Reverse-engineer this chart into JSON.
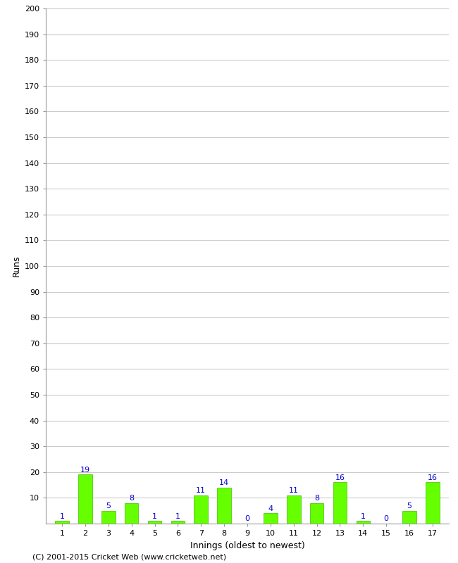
{
  "innings": [
    1,
    2,
    3,
    4,
    5,
    6,
    7,
    8,
    9,
    10,
    11,
    12,
    13,
    14,
    15,
    16,
    17
  ],
  "runs": [
    1,
    19,
    5,
    8,
    1,
    1,
    11,
    14,
    0,
    4,
    11,
    8,
    16,
    1,
    0,
    5,
    16
  ],
  "bar_color": "#66ff00",
  "bar_edge_color": "#44bb00",
  "label_color": "#0000cc",
  "xlabel": "Innings (oldest to newest)",
  "ylabel": "Runs",
  "ylim": [
    0,
    200
  ],
  "yticks": [
    10,
    20,
    30,
    40,
    50,
    60,
    70,
    80,
    90,
    100,
    110,
    120,
    130,
    140,
    150,
    160,
    170,
    180,
    190,
    200
  ],
  "background_color": "#ffffff",
  "grid_color": "#cccccc",
  "footer": "(C) 2001-2015 Cricket Web (www.cricketweb.net)"
}
